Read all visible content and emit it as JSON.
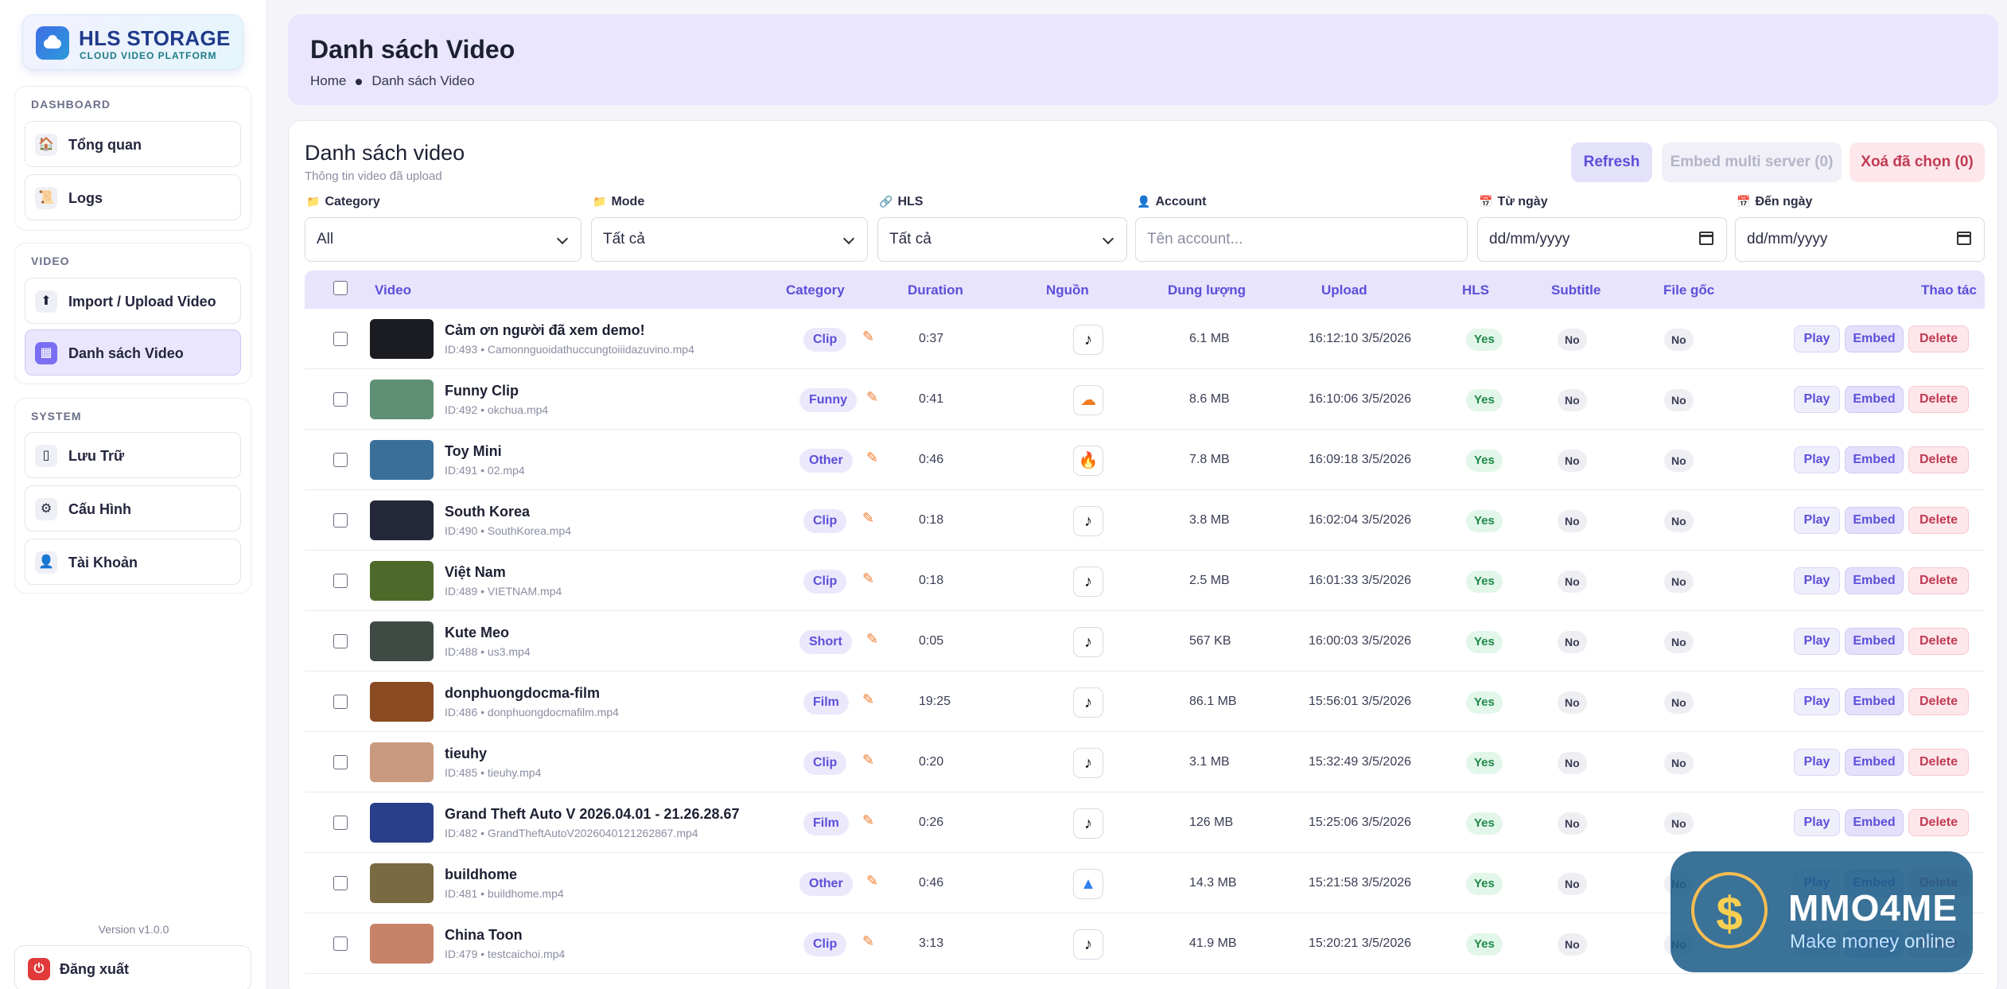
{
  "logo": {
    "title": "HLS STORAGE",
    "subtitle": "CLOUD VIDEO PLATFORM"
  },
  "sidebar": {
    "groups": [
      {
        "title": "DASHBOARD",
        "items": [
          {
            "label": "Tổng quan",
            "icon": "🏠",
            "icon_name": "home-icon"
          },
          {
            "label": "Logs",
            "icon": "📜",
            "icon_name": "scroll-icon"
          }
        ]
      },
      {
        "title": "VIDEO",
        "items": [
          {
            "label": "Import / Upload Video",
            "icon": "⬆",
            "icon_name": "upload-icon"
          },
          {
            "label": "Danh sách Video",
            "icon": "▦",
            "icon_name": "video-list-icon",
            "active": true
          }
        ]
      },
      {
        "title": "SYSTEM",
        "items": [
          {
            "label": "Lưu Trữ",
            "icon": "▯",
            "icon_name": "storage-icon"
          },
          {
            "label": "Cấu Hình",
            "icon": "⚙",
            "icon_name": "gear-icon"
          },
          {
            "label": "Tài Khoản",
            "icon": "👤",
            "icon_name": "user-icon"
          }
        ]
      }
    ],
    "version": "Version v1.0.0",
    "logout_label": "Đăng xuất"
  },
  "header": {
    "title": "Danh sách Video",
    "breadcrumb_home": "Home",
    "breadcrumb_current": "Danh sách Video"
  },
  "card": {
    "title": "Danh sách video",
    "subtitle": "Thông tin video đã upload",
    "refresh_label": "Refresh",
    "embed_multi_label": "Embed multi server (0)",
    "delete_selected_label": "Xoá đã chọn (0)"
  },
  "filters": {
    "category": {
      "label": "Category",
      "icon": "📁",
      "value": "All"
    },
    "mode": {
      "label": "Mode",
      "icon": "📁",
      "value": "Tất cả"
    },
    "hls": {
      "label": "HLS",
      "icon": "🔗",
      "value": "Tất cả"
    },
    "account": {
      "label": "Account",
      "icon": "👤",
      "placeholder": "Tên account..."
    },
    "from_date": {
      "label": "Từ ngày",
      "icon": "📅",
      "placeholder": "dd/mm/yyyy"
    },
    "to_date": {
      "label": "Đến ngày",
      "icon": "📅",
      "placeholder": "dd/mm/yyyy"
    }
  },
  "table": {
    "headers": {
      "video": "Video",
      "category": "Category",
      "duration": "Duration",
      "source": "Nguồn",
      "size": "Dung lượng",
      "upload": "Upload",
      "hls": "HLS",
      "subtitle": "Subtitle",
      "original": "File gốc",
      "actions": "Thao tác"
    },
    "action_labels": {
      "play": "Play",
      "embed": "Embed",
      "delete": "Delete"
    },
    "rows": [
      {
        "name": "Cảm ơn người đã xem demo!",
        "meta": "ID:493 • Camonnguoidathuccungtoiiidazuvino.mp4",
        "category": "Clip",
        "duration": "0:37",
        "source": "tiktok",
        "size": "6.1 MB",
        "upload": "16:12:10 3/5/2026",
        "hls": "Yes",
        "subtitle": "No",
        "original": "No",
        "thumb": "#1b1b22"
      },
      {
        "name": "Funny Clip",
        "meta": "ID:492 • okchua.mp4",
        "category": "Funny",
        "duration": "0:41",
        "source": "soundcloud",
        "size": "8.6 MB",
        "upload": "16:10:06 3/5/2026",
        "hls": "Yes",
        "subtitle": "No",
        "original": "No",
        "thumb": "#5f8f74"
      },
      {
        "name": "Toy Mini",
        "meta": "ID:491 • 02.mp4",
        "category": "Other",
        "duration": "0:46",
        "source": "fire",
        "size": "7.8 MB",
        "upload": "16:09:18 3/5/2026",
        "hls": "Yes",
        "subtitle": "No",
        "original": "No",
        "thumb": "#3a6f9a"
      },
      {
        "name": "South Korea",
        "meta": "ID:490 • SouthKorea.mp4",
        "category": "Clip",
        "duration": "0:18",
        "source": "tiktok",
        "size": "3.8 MB",
        "upload": "16:02:04 3/5/2026",
        "hls": "Yes",
        "subtitle": "No",
        "original": "No",
        "thumb": "#24283a"
      },
      {
        "name": "Việt Nam",
        "meta": "ID:489 • VIETNAM.mp4",
        "category": "Clip",
        "duration": "0:18",
        "source": "tiktok",
        "size": "2.5 MB",
        "upload": "16:01:33 3/5/2026",
        "hls": "Yes",
        "subtitle": "No",
        "original": "No",
        "thumb": "#4e6a2a"
      },
      {
        "name": "Kute Meo",
        "meta": "ID:488 • us3.mp4",
        "category": "Short",
        "duration": "0:05",
        "source": "tiktok",
        "size": "567 KB",
        "upload": "16:00:03 3/5/2026",
        "hls": "Yes",
        "subtitle": "No",
        "original": "No",
        "thumb": "#3f4a45"
      },
      {
        "name": "donphuongdocma-film",
        "meta": "ID:486 • donphuongdocmafilm.mp4",
        "category": "Film",
        "duration": "19:25",
        "source": "tiktok",
        "size": "86.1 MB",
        "upload": "15:56:01 3/5/2026",
        "hls": "Yes",
        "subtitle": "No",
        "original": "No",
        "thumb": "#8a4a22"
      },
      {
        "name": "tieuhy",
        "meta": "ID:485 • tieuhy.mp4",
        "category": "Clip",
        "duration": "0:20",
        "source": "tiktok",
        "size": "3.1 MB",
        "upload": "15:32:49 3/5/2026",
        "hls": "Yes",
        "subtitle": "No",
        "original": "No",
        "thumb": "#c99a80"
      },
      {
        "name": "Grand Theft Auto V 2026.04.01 - 21.26.28.67",
        "meta": "ID:482 • GrandTheftAutoV2026040121262867.mp4",
        "category": "Film",
        "duration": "0:26",
        "source": "tiktok",
        "size": "126 MB",
        "upload": "15:25:06 3/5/2026",
        "hls": "Yes",
        "subtitle": "No",
        "original": "No",
        "thumb": "#2a3f8a"
      },
      {
        "name": "buildhome",
        "meta": "ID:481 • buildhome.mp4",
        "category": "Other",
        "duration": "0:46",
        "source": "google-drive",
        "size": "14.3 MB",
        "upload": "15:21:58 3/5/2026",
        "hls": "Yes",
        "subtitle": "No",
        "original": "No",
        "thumb": "#7a6a42"
      },
      {
        "name": "China Toon",
        "meta": "ID:479 • testcaichoi.mp4",
        "category": "Clip",
        "duration": "3:13",
        "source": "tiktok",
        "size": "41.9 MB",
        "upload": "15:20:21 3/5/2026",
        "hls": "Yes",
        "subtitle": "No",
        "original": "No",
        "thumb": "#c7826a"
      }
    ]
  },
  "watermark": {
    "title": "MMO4ME",
    "subtitle": "Make money online",
    "symbol": "$"
  },
  "colors": {
    "accent": "#5c4fd8",
    "danger": "#c03b54",
    "success": "#1f8a4a",
    "header_bg": "#e9e6fd"
  }
}
